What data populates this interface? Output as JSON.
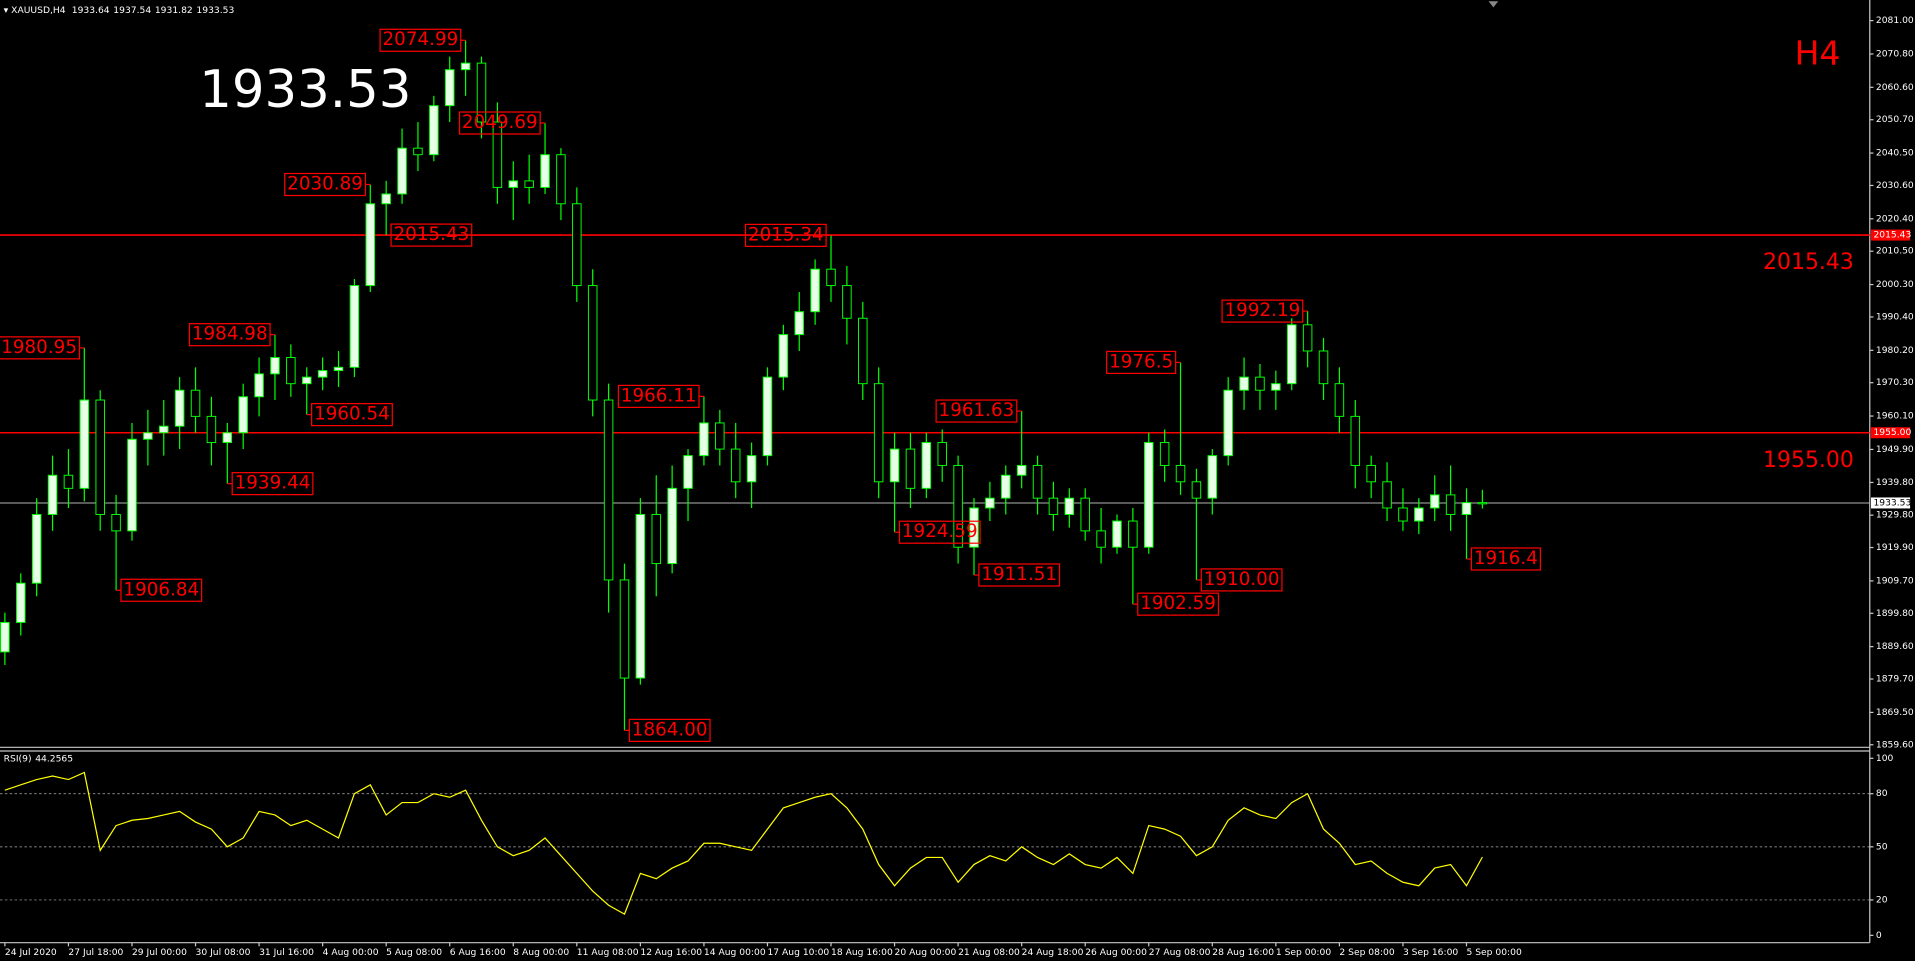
{
  "chart_data": {
    "type": "candlestick",
    "symbol": "XAUUSD,H4",
    "timeframe_label": "H4",
    "categories": [
      "24 Jul 2020",
      null,
      null,
      null,
      "27 Jul 18:00",
      null,
      null,
      null,
      "29 Jul 00:00",
      null,
      null,
      null,
      "30 Jul 08:00",
      null,
      null,
      null,
      "31 Jul 16:00",
      null,
      null,
      null,
      "4 Aug 00:00",
      null,
      null,
      null,
      "5 Aug 08:00",
      null,
      null,
      null,
      "6 Aug 16:00",
      null,
      null,
      null,
      "8 Aug 00:00",
      null,
      null,
      null,
      "11 Aug 08:00",
      null,
      null,
      null,
      "12 Aug 16:00",
      null,
      null,
      null,
      "14 Aug 00:00",
      null,
      null,
      null,
      "17 Aug 10:00",
      null,
      null,
      null,
      "18 Aug 16:00",
      null,
      null,
      null,
      "20 Aug 00:00",
      null,
      null,
      null,
      "21 Aug 08:00",
      null,
      null,
      null,
      "24 Aug 18:00",
      null,
      null,
      null,
      "26 Aug 00:00",
      null,
      null,
      null,
      "27 Aug 08:00",
      null,
      null,
      null,
      "28 Aug 16:00",
      null,
      null,
      null,
      "1 Sep 00:00",
      null,
      null,
      null,
      "2 Sep 08:00",
      null,
      null,
      null,
      "3 Sep 16:00",
      null,
      null,
      null,
      "5 Sep 00:00",
      null
    ],
    "open": [
      1888,
      1897,
      1909,
      1930,
      1942,
      1938,
      1965,
      1930,
      1925,
      1953,
      1955,
      1957,
      1968,
      1960,
      1952,
      1955,
      1966,
      1973,
      1978,
      1970,
      1972,
      1974,
      1975,
      2000,
      2025,
      2028,
      2042,
      2040,
      2055,
      2066,
      2068,
      2050,
      2030,
      2032,
      2030,
      2040,
      2025,
      2000,
      1965,
      1910,
      1880,
      1930,
      1915,
      1938,
      1948,
      1958,
      1950,
      1940,
      1948,
      1972,
      1985,
      1992,
      2005,
      2000,
      1990,
      1970,
      1940,
      1950,
      1938,
      1952,
      1945,
      1920,
      1932,
      1935,
      1942,
      1945,
      1935,
      1930,
      1935,
      1925,
      1920,
      1928,
      1920,
      1952,
      1945,
      1940,
      1935,
      1948,
      1968,
      1972,
      1968,
      1970,
      1988,
      1980,
      1970,
      1960,
      1945,
      1940,
      1932,
      1928,
      1932,
      1936,
      1930,
      1933.64
    ],
    "high": [
      1900,
      1912,
      1935,
      1948,
      1950,
      1980.95,
      1968,
      1936,
      1958,
      1962,
      1965,
      1972,
      1975,
      1966,
      1958,
      1970,
      1978,
      1984.98,
      1982,
      1975,
      1978,
      1980,
      2002,
      2030.89,
      2032,
      2048,
      2050,
      2058,
      2070,
      2074.99,
      2070,
      2056,
      2038,
      2040,
      2049.69,
      2042,
      2030,
      2005,
      1970,
      1915,
      1935,
      1942,
      1945,
      1950,
      1966.11,
      1962,
      1958,
      1952,
      1975,
      1988,
      1998,
      2008,
      2015.34,
      2006,
      1995,
      1975,
      1955,
      1955,
      1955,
      1956,
      1948,
      1935,
      1940,
      1945,
      1961.63,
      1948,
      1940,
      1938,
      1938,
      1932,
      1930,
      1932,
      1955,
      1956,
      1976.5,
      1944,
      1950,
      1972,
      1978,
      1976,
      1974,
      1990,
      1992.19,
      1984,
      1975,
      1965,
      1948,
      1946,
      1938,
      1935,
      1942,
      1945,
      1938,
      1937.54
    ],
    "low": [
      1884,
      1893,
      1905,
      1925,
      1932,
      1934,
      1925,
      1906.84,
      1922,
      1945,
      1948,
      1950,
      1955,
      1945,
      1939.44,
      1950,
      1960,
      1965,
      1966,
      1960.54,
      1968,
      1969,
      1972,
      1998,
      2015.43,
      2025,
      2035,
      2038,
      2050,
      2058,
      2045,
      2025,
      2020,
      2025,
      2028,
      2020,
      1995,
      1960,
      1900,
      1864,
      1878,
      1905,
      1912,
      1928,
      1945,
      1945,
      1935,
      1932,
      1945,
      1968,
      1980,
      1988,
      1995,
      1982,
      1965,
      1935,
      1924.59,
      1932,
      1935,
      1940,
      1915,
      1911.51,
      1928,
      1930,
      1938,
      1930,
      1925,
      1926,
      1922,
      1915,
      1918,
      1902.59,
      1918,
      1940,
      1936,
      1910,
      1930,
      1945,
      1962,
      1962,
      1962,
      1968,
      1975,
      1965,
      1955,
      1938,
      1935,
      1928,
      1925,
      1924,
      1928,
      1925,
      1916.4,
      1931.82
    ],
    "close": [
      1897,
      1909,
      1930,
      1942,
      1938,
      1965,
      1930,
      1925,
      1953,
      1955,
      1957,
      1968,
      1960,
      1952,
      1955,
      1966,
      1973,
      1978,
      1970,
      1972,
      1974,
      1975,
      2000,
      2025,
      2028,
      2042,
      2040,
      2055,
      2066,
      2068,
      2050,
      2030,
      2032,
      2030,
      2040,
      2025,
      2000,
      1965,
      1910,
      1880,
      1930,
      1915,
      1938,
      1948,
      1958,
      1950,
      1940,
      1948,
      1972,
      1985,
      1992,
      2005,
      2000,
      1990,
      1970,
      1940,
      1950,
      1938,
      1952,
      1945,
      1920,
      1932,
      1935,
      1942,
      1945,
      1935,
      1930,
      1935,
      1925,
      1920,
      1928,
      1920,
      1952,
      1945,
      1940,
      1935,
      1948,
      1968,
      1972,
      1968,
      1970,
      1988,
      1980,
      1970,
      1960,
      1945,
      1940,
      1932,
      1928,
      1932,
      1936,
      1930,
      1933.64,
      1933.53
    ],
    "up_color": "#e6ffe6",
    "down_color": "#000000",
    "outline_color": "#00ff00",
    "ylim": [
      1859.2,
      2087.3
    ],
    "yticks": [
      {
        "value": 2081,
        "label": "2081.00"
      },
      {
        "value": 2070.8,
        "label": "2070.80"
      },
      {
        "value": 2060.6,
        "label": "2060.60"
      },
      {
        "value": 2050.7,
        "label": "2050.70"
      },
      {
        "value": 2040.5,
        "label": "2040.50"
      },
      {
        "value": 2030.6,
        "label": "2030.60"
      },
      {
        "value": 2020.4,
        "label": "2020.40"
      },
      {
        "value": 2010.5,
        "label": "2010.50"
      },
      {
        "value": 2000.3,
        "label": "2000.30"
      },
      {
        "value": 1990.4,
        "label": "1990.40"
      },
      {
        "value": 1980.2,
        "label": "1980.20"
      },
      {
        "value": 1970.3,
        "label": "1970.30"
      },
      {
        "value": 1960.1,
        "label": "1960.10"
      },
      {
        "value": 1949.9,
        "label": "1949.90"
      },
      {
        "value": 1939.8,
        "label": "1939.80"
      },
      {
        "value": 1929.8,
        "label": "1929.80"
      },
      {
        "value": 1919.9,
        "label": "1919.90"
      },
      {
        "value": 1909.7,
        "label": "1909.70"
      },
      {
        "value": 1899.8,
        "label": "1899.80"
      },
      {
        "value": 1889.6,
        "label": "1889.60"
      },
      {
        "value": 1879.7,
        "label": "1879.70"
      },
      {
        "value": 1869.5,
        "label": "1869.50"
      },
      {
        "value": 1859.6,
        "label": "1859.60"
      }
    ],
    "levels": [
      {
        "value": 2015.43,
        "label": "2015.43"
      },
      {
        "value": 1955,
        "label": "1955.00"
      }
    ],
    "level_color": "#ff0000",
    "annotations": [
      2074.99,
      2049.69,
      2030.89,
      2015.43,
      2015.34,
      1980.95,
      1984.98,
      1960.54,
      1939.44,
      1906.84,
      1966.11,
      {
        "value": 1864,
        "label": "1864.00"
      },
      1924.59,
      1911.51,
      1961.63,
      1976.5,
      1902.59,
      {
        "value": 1910,
        "label": "1910.00"
      },
      1992.19,
      1916.4
    ],
    "annotation_labels_override": null,
    "rsi": {
      "name": "RSI(9)",
      "color": "#ffff00",
      "ylim": [
        0,
        100
      ],
      "yticks": [
        100,
        80,
        50,
        20,
        0
      ],
      "levels": [
        80,
        50,
        20
      ],
      "values": [
        82,
        85,
        88,
        90,
        88,
        92,
        48,
        62,
        65,
        66,
        68,
        70,
        64,
        60,
        50,
        55,
        70,
        68,
        62,
        65,
        60,
        55,
        80,
        85,
        68,
        75,
        75,
        80,
        78,
        82,
        65,
        50,
        45,
        48,
        55,
        45,
        35,
        25,
        17,
        12,
        35,
        32,
        38,
        42,
        52,
        52,
        50,
        48,
        60,
        72,
        75,
        78,
        80,
        72,
        60,
        40,
        28,
        38,
        44,
        44,
        30,
        40,
        45,
        42,
        50,
        44,
        40,
        46,
        40,
        38,
        44,
        35,
        62,
        60,
        56,
        45,
        50,
        65,
        72,
        68,
        66,
        75,
        80,
        60,
        52,
        40,
        42,
        35,
        30,
        28,
        38,
        40,
        28,
        44.2565
      ]
    }
  }
}
